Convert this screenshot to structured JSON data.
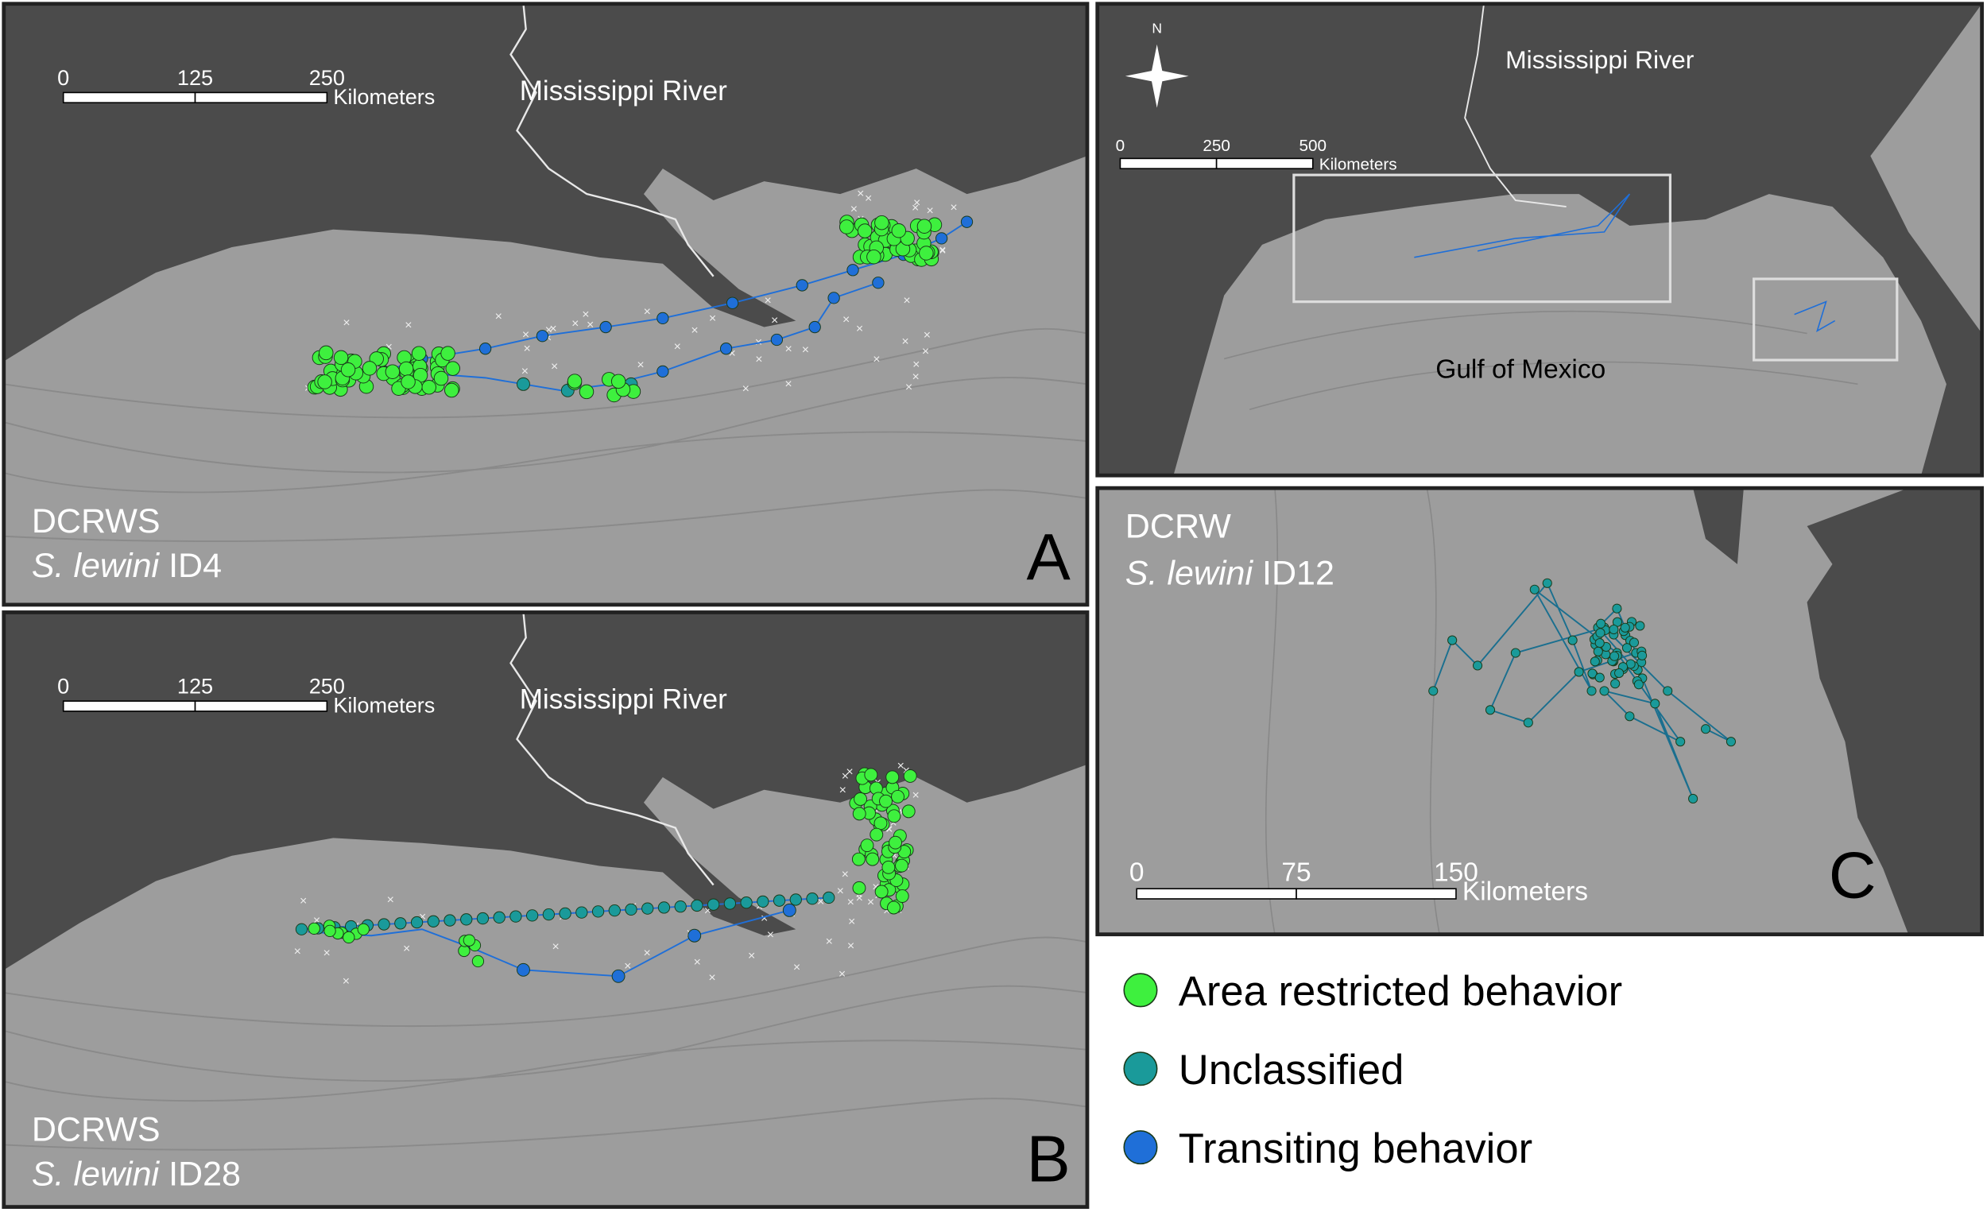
{
  "panel_a": {
    "letter": "A",
    "model": "DCRWS",
    "species": "S. lewini",
    "id": "ID4",
    "river": "Mississippi River",
    "scale": {
      "ticks": [
        0,
        125,
        250
      ],
      "unit": "Kilometers"
    }
  },
  "panel_b": {
    "letter": "B",
    "model": "DCRWS",
    "species": "S. lewini",
    "id": "ID28",
    "river": "Mississippi River",
    "scale": {
      "ticks": [
        0,
        125,
        250
      ],
      "unit": "Kilometers"
    }
  },
  "overview": {
    "north": "N",
    "river": "Mississippi River",
    "sea": "Gulf of Mexico",
    "scale": {
      "ticks": [
        0,
        250,
        500
      ],
      "unit": "Kilometers"
    }
  },
  "panel_c": {
    "letter": "C",
    "model": "DCRW",
    "species": "S. lewini",
    "id": "ID12",
    "scale": {
      "ticks": [
        0,
        75,
        150
      ],
      "unit": "Kilometers"
    }
  },
  "legend": {
    "items": [
      {
        "name": "Area restricted behavior",
        "color": "#3ef03e"
      },
      {
        "name": "Unclassified",
        "color": "#1a9a9a"
      },
      {
        "name": "Transiting behavior",
        "color": "#1f6fd8"
      }
    ]
  }
}
